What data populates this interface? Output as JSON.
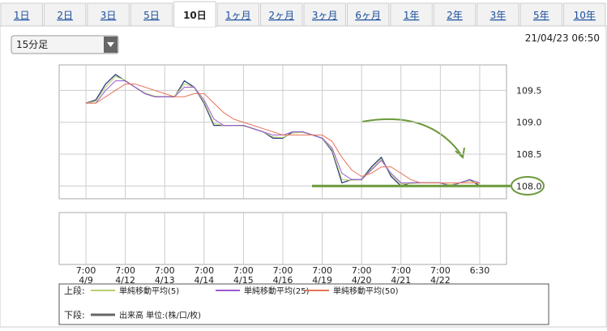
{
  "tabs": [
    "1日",
    "2日",
    "3日",
    "5日",
    "10日",
    "1ヶ月",
    "2ヶ月",
    "3ヶ月",
    "6ヶ月",
    "1年",
    "2年",
    "3年",
    "5年",
    "10年"
  ],
  "selected_tab_index": 4,
  "dropdown": "15分足",
  "timestamp": "21/04/23 06:50",
  "chart_data": {
    "type": "line",
    "x": [
      0,
      0.25,
      0.5,
      0.75,
      1,
      1.25,
      1.5,
      1.75,
      2,
      2.25,
      2.5,
      2.75,
      3,
      3.25,
      3.5,
      3.75,
      4,
      4.25,
      4.5,
      4.75,
      5,
      5.25,
      5.5,
      5.75,
      6,
      6.25,
      6.5,
      6.75,
      7,
      7.25,
      7.5,
      7.75,
      8,
      8.25,
      8.5,
      8.75,
      9,
      9.25,
      9.5,
      9.75,
      10
    ],
    "xlim": [
      -0.68,
      10.68
    ],
    "xticks": [
      {
        "value": 0,
        "label": "7:00"
      },
      {
        "value": 1,
        "label": "7:00"
      },
      {
        "value": 2,
        "label": "7:00"
      },
      {
        "value": 3,
        "label": "7:00"
      },
      {
        "value": 4,
        "label": "7:00"
      },
      {
        "value": 5,
        "label": "7:00"
      },
      {
        "value": 6,
        "label": "7:00"
      },
      {
        "value": 7,
        "label": "7:00"
      },
      {
        "value": 8,
        "label": "7:00"
      },
      {
        "value": 9,
        "label": "7:00"
      },
      {
        "value": 10,
        "label": "6:30"
      }
    ],
    "xtick_dates": [
      "4/9",
      "4/12",
      "4/13",
      "4/14",
      "4/15",
      "4/16",
      "4/19",
      "4/20",
      "4/21",
      "4/22"
    ],
    "ylim": [
      107.8,
      109.9
    ],
    "yticks": [
      {
        "value": 108,
        "label": "108.0"
      },
      108.5,
      {
        "value": 109,
        "label": "109.0"
      },
      109.5
    ],
    "reference_line": 108,
    "reference_color": "#6a9a3a",
    "upper_label": "上段:",
    "lower_label": "下段:",
    "lower_series_name": "出来高 単位:(株/口/枚)",
    "lower_color": "#666666",
    "price": {
      "color": "#283c78",
      "values": [
        109.3,
        109.35,
        109.6,
        109.75,
        109.65,
        109.55,
        109.45,
        109.4,
        109.4,
        109.4,
        109.65,
        109.55,
        109.3,
        108.95,
        108.95,
        108.95,
        108.95,
        108.9,
        108.85,
        108.75,
        108.75,
        108.85,
        108.85,
        108.8,
        108.75,
        108.55,
        108.05,
        108.1,
        108.1,
        108.3,
        108.45,
        108.15,
        108.0,
        108.05,
        108.05,
        108.05,
        108.05,
        108.0,
        108.05,
        108.1,
        108.0
      ]
    },
    "series": [
      {
        "name": "単純移動平均(5)",
        "color": "#b5cf6b",
        "values": [
          109.3,
          109.33,
          109.55,
          109.72,
          109.66,
          109.55,
          109.46,
          109.41,
          109.4,
          109.41,
          109.6,
          109.55,
          109.32,
          108.98,
          108.95,
          108.95,
          108.94,
          108.9,
          108.85,
          108.77,
          108.76,
          108.83,
          108.84,
          108.8,
          108.75,
          108.57,
          108.1,
          108.09,
          108.1,
          108.27,
          108.42,
          108.18,
          108.03,
          108.04,
          108.05,
          108.05,
          108.05,
          108.02,
          108.05,
          108.08,
          108.03
        ]
      },
      {
        "name": "単純移動平均(25)",
        "color": "#9b59d0",
        "values": [
          109.3,
          109.3,
          109.5,
          109.65,
          109.65,
          109.55,
          109.45,
          109.4,
          109.4,
          109.4,
          109.55,
          109.55,
          109.35,
          109.05,
          108.95,
          108.95,
          108.95,
          108.9,
          108.85,
          108.8,
          108.8,
          108.85,
          108.85,
          108.8,
          108.75,
          108.6,
          108.2,
          108.1,
          108.1,
          108.25,
          108.4,
          108.2,
          108.05,
          108.05,
          108.05,
          108.05,
          108.05,
          108.0,
          108.05,
          108.1,
          108.05
        ]
      },
      {
        "name": "単純移動平均(50)",
        "color": "#e8735a",
        "values": [
          109.3,
          109.3,
          109.4,
          109.5,
          109.6,
          109.6,
          109.55,
          109.5,
          109.45,
          109.4,
          109.4,
          109.45,
          109.45,
          109.3,
          109.15,
          109.05,
          109.0,
          108.95,
          108.9,
          108.85,
          108.8,
          108.8,
          108.8,
          108.8,
          108.8,
          108.7,
          108.45,
          108.25,
          108.15,
          108.2,
          108.3,
          108.3,
          108.2,
          108.1,
          108.05,
          108.05,
          108.05,
          108.05,
          108.05,
          108.05,
          108.05
        ]
      }
    ]
  }
}
